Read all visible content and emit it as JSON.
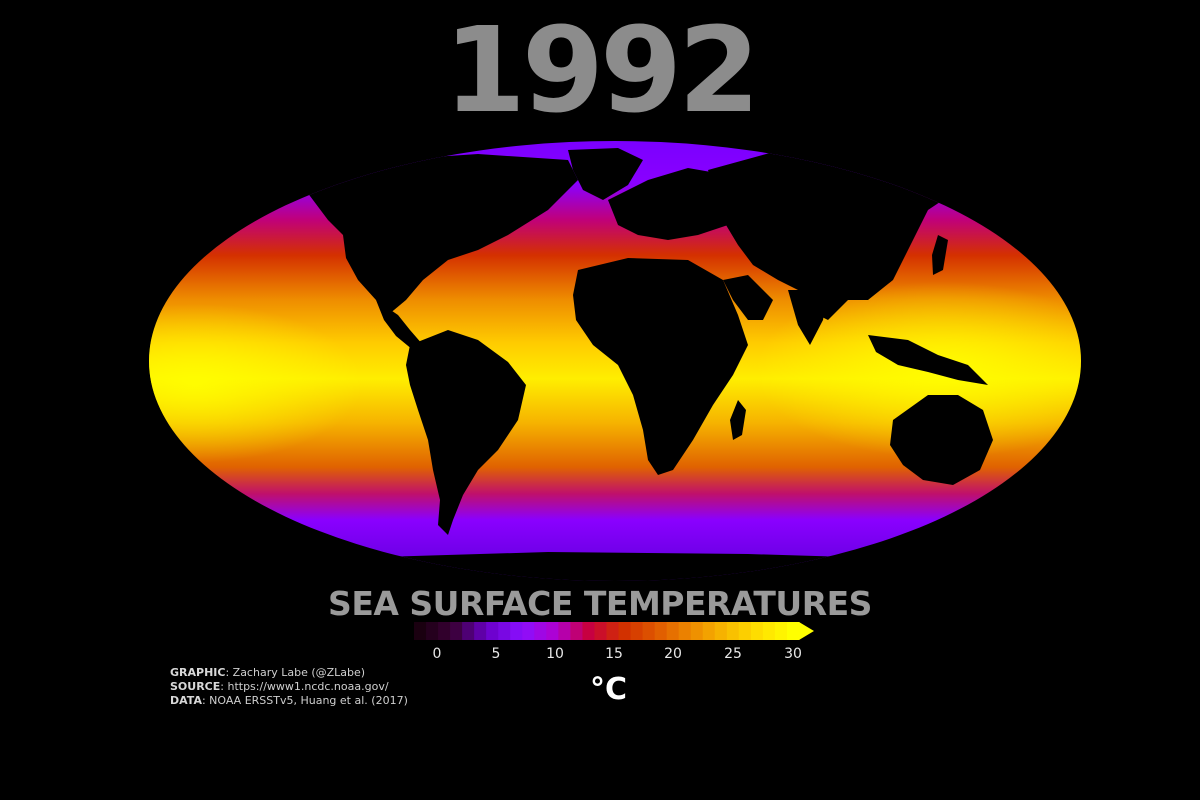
{
  "year": "1992",
  "title": "SEA SURFACE TEMPERATURES",
  "colorbar": {
    "ticks": [
      "0",
      "5",
      "10",
      "15",
      "20",
      "25",
      "30"
    ],
    "unit": "°C",
    "colors": [
      "#1a0010",
      "#3a0038",
      "#6a00c8",
      "#8a10ff",
      "#b000d0",
      "#c8003c",
      "#d23000",
      "#e05a00",
      "#ee8a00",
      "#f7b800",
      "#ffe000",
      "#ffff00"
    ]
  },
  "credits": [
    {
      "key": "GRAPHIC",
      "value": ": Zachary Labe (@ZLabe)"
    },
    {
      "key": "SOURCE",
      "value": ": https://www1.ncdc.noaa.gov/"
    },
    {
      "key": "DATA",
      "value": ": NOAA ERSSTv5, Huang et al. (2017)"
    }
  ]
}
